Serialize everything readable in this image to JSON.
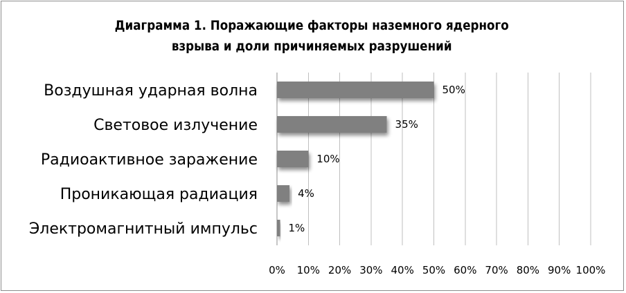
{
  "chart_data": {
    "type": "bar",
    "orientation": "horizontal",
    "title": "Диаграмма 1. Поражающие факторы наземного ядерного взрыва и доли причиняемых разрушений",
    "title_lines": [
      "Диаграмма 1. Поражающие факторы наземного ядерного",
      "взрыва и доли причиняемых разрушений"
    ],
    "categories": [
      "Воздушная ударная волна",
      "Световое излучение",
      "Радиоактивное заражение",
      "Проникающая радиация",
      "Электромагнитный импульс"
    ],
    "values": [
      50,
      35,
      10,
      4,
      1
    ],
    "data_labels": [
      "50%",
      "35%",
      "10%",
      "4%",
      "1%"
    ],
    "xlabel": "",
    "ylabel": "",
    "xlim": [
      0,
      100
    ],
    "x_ticks": [
      "0%",
      "10%",
      "20%",
      "30%",
      "40%",
      "50%",
      "60%",
      "70%",
      "80%",
      "90%",
      "100%"
    ],
    "grid": "vertical",
    "legend": "none",
    "bar_color": "#808080",
    "grid_color": "#bfbfbf",
    "text_color": "#000000"
  }
}
